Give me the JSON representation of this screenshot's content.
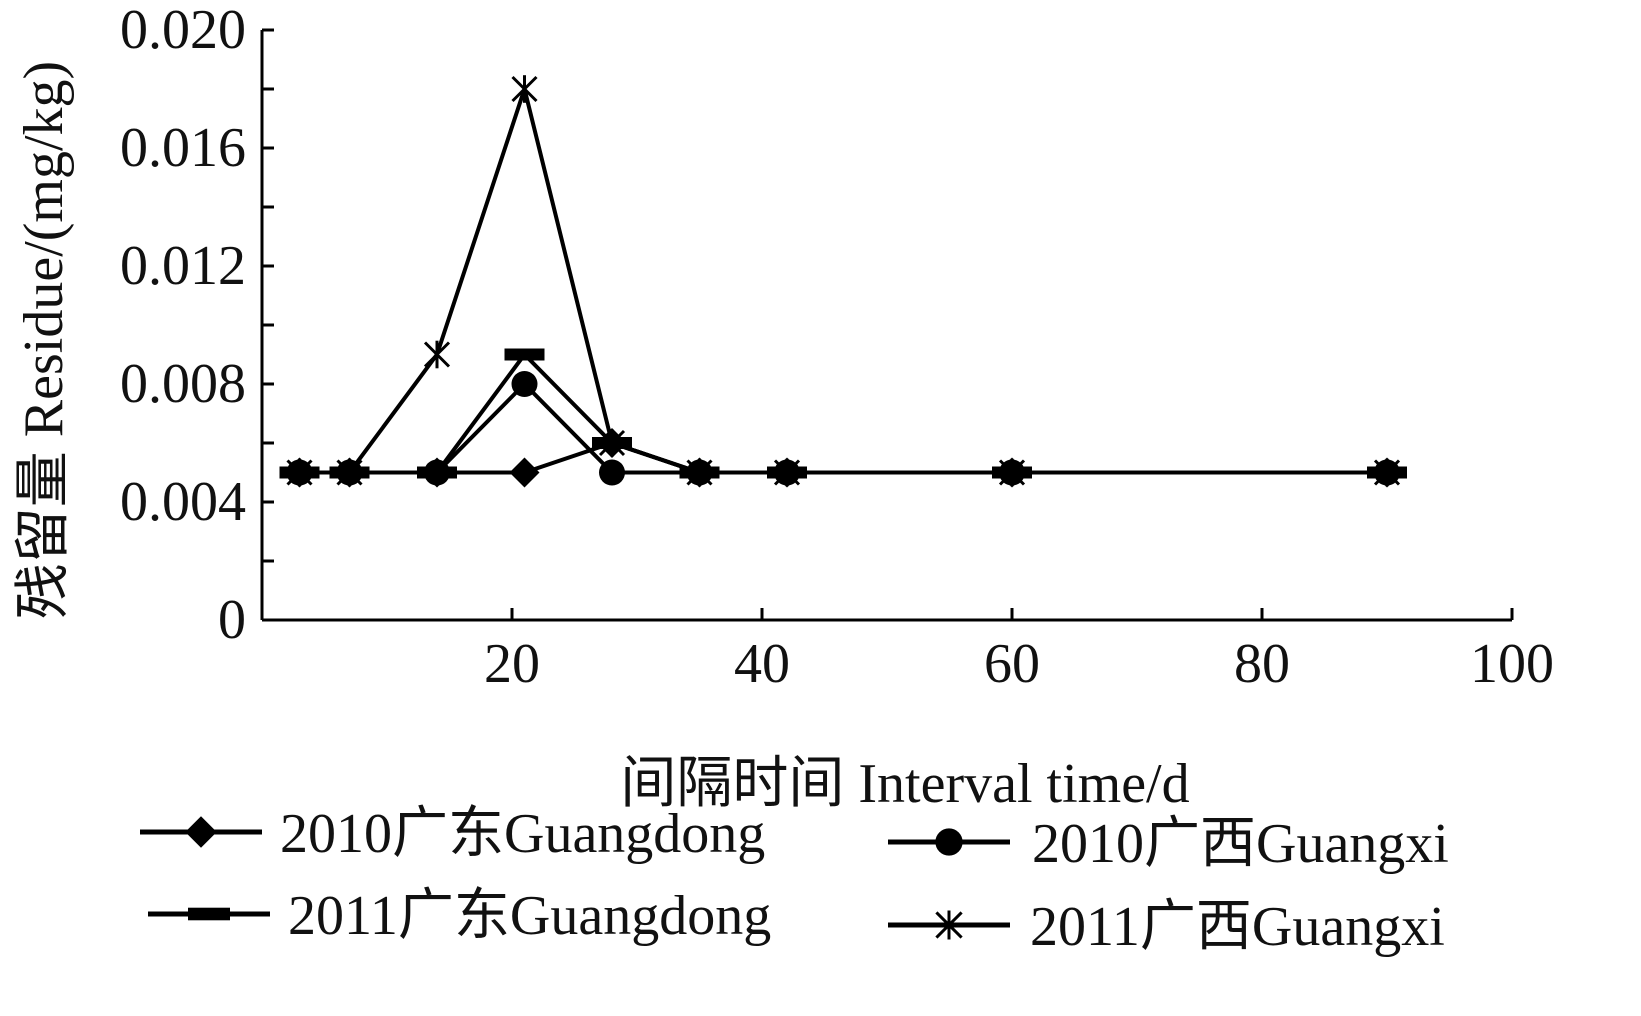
{
  "chart_data": {
    "type": "line",
    "title": "",
    "xlabel": "间隔时间 Interval time/d",
    "ylabel": "残留量 Residue/(mg/kg)",
    "xlim": [
      0,
      100
    ],
    "ylim": [
      0,
      0.02
    ],
    "x_ticks": [
      20,
      40,
      60,
      80,
      100
    ],
    "x_tick_labels": [
      "20",
      "40",
      "60",
      "80",
      "100"
    ],
    "y_ticks": [
      0,
      0.004,
      0.008,
      0.012,
      0.016,
      0.02
    ],
    "y_tick_labels": [
      "0",
      "0.004",
      "0.008",
      "0.012",
      "0.016",
      "0.020"
    ],
    "grid": false,
    "legend_position": "bottom",
    "series": [
      {
        "name": "2010广东Guangdong",
        "marker": "diamond",
        "x": [
          3,
          7,
          14,
          21,
          28,
          35,
          42,
          60,
          90
        ],
        "y": [
          0.005,
          0.005,
          0.005,
          0.005,
          0.006,
          0.005,
          0.005,
          0.005,
          0.005
        ]
      },
      {
        "name": "2010广西Guangxi",
        "marker": "circle",
        "x": [
          3,
          7,
          14,
          21,
          28,
          35,
          42,
          60,
          90
        ],
        "y": [
          0.005,
          0.005,
          0.005,
          0.008,
          0.005,
          0.005,
          0.005,
          0.005,
          0.005
        ]
      },
      {
        "name": "2011广东Guangdong",
        "marker": "bar",
        "x": [
          3,
          7,
          14,
          21,
          28,
          35,
          42,
          60,
          90
        ],
        "y": [
          0.005,
          0.005,
          0.005,
          0.009,
          0.006,
          0.005,
          0.005,
          0.005,
          0.005
        ]
      },
      {
        "name": "2011广西Guangxi",
        "marker": "star",
        "x": [
          3,
          7,
          14,
          21,
          28,
          35,
          42,
          60,
          90
        ],
        "y": [
          0.005,
          0.005,
          0.009,
          0.018,
          0.006,
          0.005,
          0.005,
          0.005,
          0.005
        ]
      }
    ]
  }
}
